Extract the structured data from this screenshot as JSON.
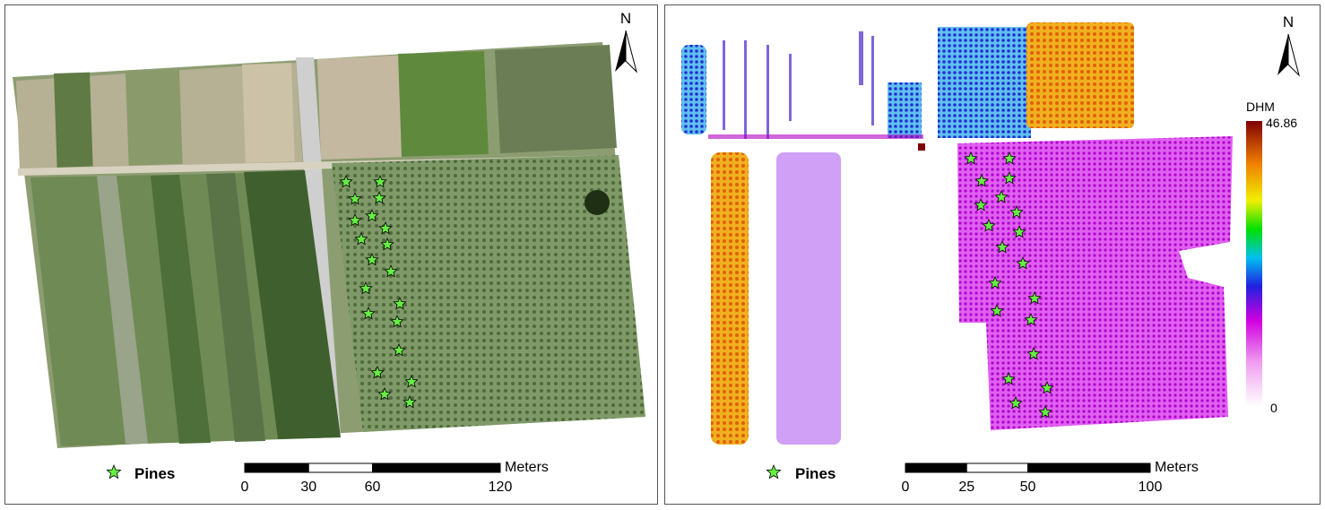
{
  "panels": [
    {
      "north": "N",
      "legend": "Pines",
      "scale": {
        "unit": "Meters",
        "labels": [
          0,
          30,
          60,
          120
        ]
      }
    },
    {
      "north": "N",
      "legend": "Pines",
      "scale": {
        "unit": "Meters",
        "labels": [
          0,
          25,
          50,
          100
        ]
      },
      "colorbar": {
        "title": "DHM",
        "max": 46.86,
        "min": 0
      }
    }
  ]
}
